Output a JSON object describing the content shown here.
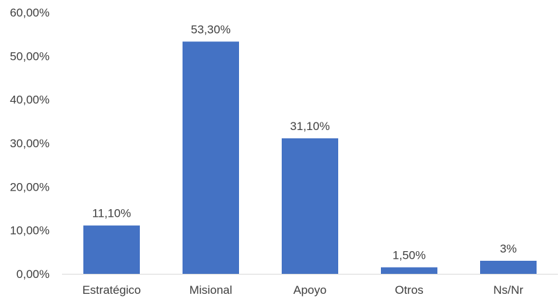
{
  "chart_data": {
    "type": "bar",
    "title": "",
    "xlabel": "",
    "ylabel": "",
    "categories": [
      "Estratégico",
      "Misional",
      "Apoyo",
      "Otros",
      "Ns/Nr"
    ],
    "values": [
      11.1,
      53.3,
      31.1,
      1.5,
      3
    ],
    "data_labels": [
      "11,10%",
      "53,30%",
      "31,10%",
      "1,50%",
      "3%"
    ],
    "ylim": [
      0,
      60
    ],
    "yticks": [
      0,
      10,
      20,
      30,
      40,
      50,
      60
    ],
    "ytick_labels": [
      "0,00%",
      "10,00%",
      "20,00%",
      "30,00%",
      "40,00%",
      "50,00%",
      "60,00%"
    ],
    "grid": false,
    "bar_color": "#4472C4",
    "axis_color": "#D9D9D9",
    "text_color": "#404040"
  }
}
